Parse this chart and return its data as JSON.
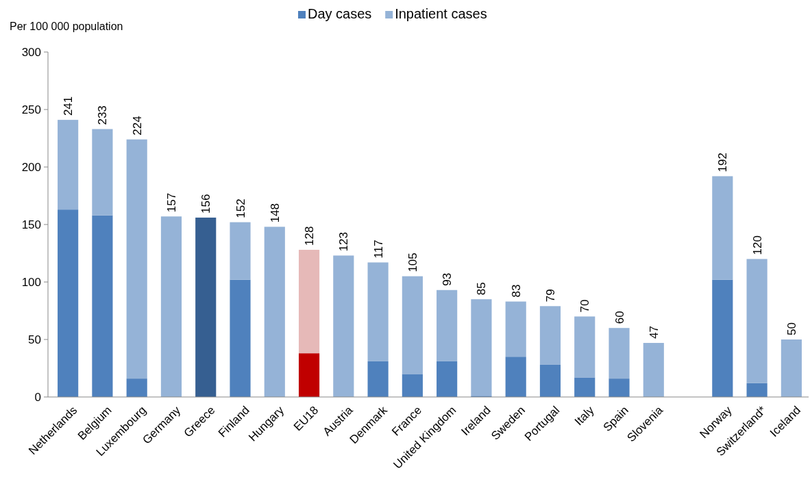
{
  "chart_data": {
    "type": "bar",
    "stacked": true,
    "ylabel": "Per 100 000 population",
    "categories": [
      "Netherlands",
      "Belgium",
      "Luxembourg",
      "Germany",
      "Greece",
      "Finland",
      "Hungary",
      "EU18",
      "Austria",
      "Denmark",
      "France",
      "United Kingdom",
      "Ireland",
      "Sweden",
      "Portugal",
      "Italy",
      "Spain",
      "Slovenia",
      null,
      "Norway",
      "Switzerland*",
      "Iceland"
    ],
    "series": [
      {
        "name": "Day cases",
        "color": "#4f81bd",
        "colors": [
          "#4f81bd",
          "#4f81bd",
          "#4f81bd",
          "#4f81bd",
          "#365f91",
          "#4f81bd",
          "#4f81bd",
          "#c00000",
          "#4f81bd",
          "#4f81bd",
          "#4f81bd",
          "#4f81bd",
          "#4f81bd",
          "#4f81bd",
          "#4f81bd",
          "#4f81bd",
          "#4f81bd",
          "#4f81bd",
          null,
          "#4f81bd",
          "#4f81bd",
          "#4f81bd"
        ],
        "values": [
          163,
          158,
          16,
          0,
          156,
          102,
          0,
          38,
          0,
          31,
          20,
          31,
          1,
          35,
          28,
          17,
          16,
          0,
          null,
          102,
          12,
          0
        ]
      },
      {
        "name": "Inpatient cases",
        "color": "#95b3d7",
        "colors": [
          "#95b3d7",
          "#95b3d7",
          "#95b3d7",
          "#95b3d7",
          "#95b3d7",
          "#95b3d7",
          "#95b3d7",
          "#e6b9b8",
          "#95b3d7",
          "#95b3d7",
          "#95b3d7",
          "#95b3d7",
          "#95b3d7",
          "#95b3d7",
          "#95b3d7",
          "#95b3d7",
          "#95b3d7",
          "#95b3d7",
          null,
          "#95b3d7",
          "#95b3d7",
          "#95b3d7"
        ],
        "values": [
          78,
          75,
          208,
          157,
          0,
          50,
          148,
          90,
          123,
          86,
          85,
          62,
          84,
          48,
          51,
          53,
          44,
          47,
          null,
          90,
          108,
          50
        ]
      }
    ],
    "totals": [
      "241",
      "233",
      "224",
      "157",
      "156",
      "152",
      "148",
      "128",
      "123",
      "117",
      "105",
      "93",
      "85",
      "83",
      "79",
      "70",
      "60",
      "47",
      null,
      "192",
      "120",
      "50"
    ],
    "ylim": [
      0,
      300
    ],
    "yticks": [
      0,
      50,
      100,
      150,
      200,
      250,
      300
    ],
    "grid": false,
    "legend": "top"
  }
}
